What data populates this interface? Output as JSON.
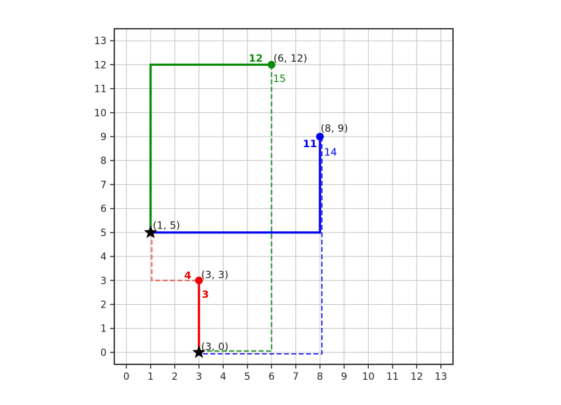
{
  "figure": {
    "background": "#ffffff"
  },
  "chart_data": {
    "type": "line",
    "title": "",
    "xlabel": "",
    "ylabel": "",
    "xlim": [
      -0.5,
      13.5
    ],
    "ylim": [
      -0.5,
      13.5
    ],
    "xticks": [
      0,
      1,
      2,
      3,
      4,
      5,
      6,
      7,
      8,
      9,
      10,
      11,
      12,
      13
    ],
    "yticks": [
      0,
      1,
      2,
      3,
      4,
      5,
      6,
      7,
      8,
      9,
      10,
      11,
      12,
      13
    ],
    "grid": true,
    "legend": "none",
    "colors": {
      "grid": "#c4c4c4",
      "spine": "#2b2b2b",
      "tick_label": "#262626",
      "annotation_black": "#1a1a1a",
      "red": "#ee0000",
      "green": "#0a8a0a",
      "blue": "#0000ee",
      "star": "#000000"
    },
    "series": [
      {
        "name": "green-dashed-path",
        "color": "#0a8a0a",
        "style": "dashed",
        "width": 2,
        "opacity": 0.85,
        "points": [
          [
            6,
            12
          ],
          [
            6,
            0.06
          ],
          [
            3,
            0.06
          ]
        ]
      },
      {
        "name": "blue-dashed-path",
        "color": "#0000ee",
        "style": "dashed",
        "width": 2,
        "opacity": 0.8,
        "points": [
          [
            8.08,
            9
          ],
          [
            8.08,
            -0.06
          ],
          [
            3,
            -0.06
          ]
        ]
      },
      {
        "name": "red-dashed-path",
        "color": "#ee0000",
        "style": "dashed",
        "width": 2,
        "opacity": 0.6,
        "points": [
          [
            1.05,
            5
          ],
          [
            1.05,
            3
          ],
          [
            3,
            3
          ]
        ]
      },
      {
        "name": "green-solid-path",
        "color": "#0a8a0a",
        "style": "solid",
        "width": 3.2,
        "opacity": 1,
        "points": [
          [
            1,
            5
          ],
          [
            1,
            12
          ],
          [
            6,
            12
          ]
        ]
      },
      {
        "name": "blue-solid-path",
        "color": "#0000ee",
        "style": "solid",
        "width": 3.2,
        "opacity": 1,
        "points": [
          [
            1,
            5
          ],
          [
            8,
            5
          ],
          [
            8,
            9
          ]
        ]
      },
      {
        "name": "red-solid-path",
        "color": "#ee0000",
        "style": "solid",
        "width": 3.2,
        "opacity": 1,
        "points": [
          [
            3,
            3
          ],
          [
            3,
            0
          ]
        ]
      }
    ],
    "points": [
      {
        "label": "(1, 5)",
        "x": 1,
        "y": 5,
        "marker": "star",
        "color": "#000000",
        "size": 10
      },
      {
        "label": "(3, 0)",
        "x": 3,
        "y": 0,
        "marker": "star",
        "color": "#000000",
        "size": 10
      },
      {
        "label": "(3, 3)",
        "x": 3,
        "y": 3,
        "marker": "circle",
        "color": "#ee0000",
        "size": 5.5
      },
      {
        "label": "(6, 12)",
        "x": 6,
        "y": 12,
        "marker": "circle",
        "color": "#0a8a0a",
        "size": 5.5
      },
      {
        "label": "(8, 9)",
        "x": 8,
        "y": 9,
        "marker": "circle",
        "color": "#0000ee",
        "size": 5.5
      }
    ],
    "annotations": [
      {
        "text": "(1, 5)",
        "x": 1.09,
        "y": 5.15,
        "color": "#1a1a1a",
        "bold": false,
        "anchor": "start"
      },
      {
        "text": "(3, 3)",
        "x": 3.09,
        "y": 3.1,
        "color": "#1a1a1a",
        "bold": false,
        "anchor": "start"
      },
      {
        "text": "(3, 0)",
        "x": 3.09,
        "y": 0.1,
        "color": "#1a1a1a",
        "bold": false,
        "anchor": "start"
      },
      {
        "text": "(6, 12)",
        "x": 6.08,
        "y": 12.13,
        "color": "#1a1a1a",
        "bold": false,
        "anchor": "start"
      },
      {
        "text": "(8, 9)",
        "x": 8.03,
        "y": 9.21,
        "color": "#1a1a1a",
        "bold": false,
        "anchor": "start"
      },
      {
        "text": "4",
        "x": 2.68,
        "y": 3.07,
        "color": "#ee0000",
        "bold": true,
        "anchor": "end"
      },
      {
        "text": "3",
        "x": 3.12,
        "y": 2.28,
        "color": "#ee0000",
        "bold": true,
        "anchor": "start"
      },
      {
        "text": "12",
        "x": 5.64,
        "y": 12.13,
        "color": "#0a8a0a",
        "bold": true,
        "anchor": "end"
      },
      {
        "text": "15",
        "x": 6.06,
        "y": 11.28,
        "color": "#0a8a0a",
        "bold": false,
        "anchor": "start"
      },
      {
        "text": "11",
        "x": 7.88,
        "y": 8.56,
        "color": "#0000ee",
        "bold": true,
        "anchor": "end"
      },
      {
        "text": "14",
        "x": 8.17,
        "y": 8.21,
        "color": "#0000ee",
        "bold": false,
        "anchor": "start"
      }
    ]
  }
}
